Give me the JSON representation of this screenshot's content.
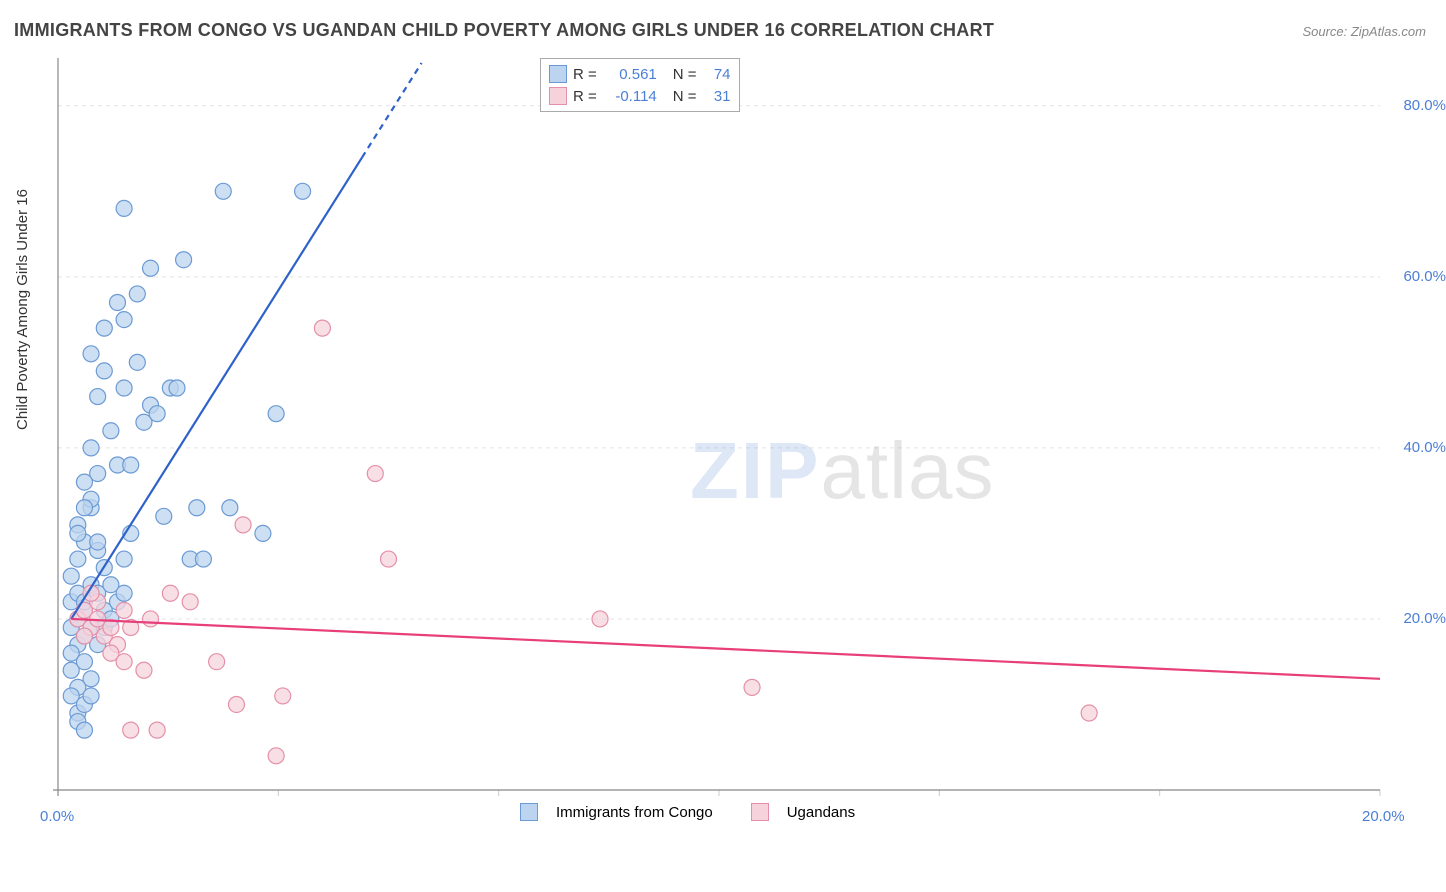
{
  "title": "IMMIGRANTS FROM CONGO VS UGANDAN CHILD POVERTY AMONG GIRLS UNDER 16 CORRELATION CHART",
  "source_label": "Source: ",
  "source_value": "ZipAtlas.com",
  "ylabel": "Child Poverty Among Girls Under 16",
  "watermark_bold": "ZIP",
  "watermark_light": "atlas",
  "chart": {
    "type": "scatter-correlation",
    "background_color": "#ffffff",
    "grid_color": "#e3e3e3",
    "axis_color": "#888888",
    "tick_color": "#cccccc",
    "xlim": [
      0,
      20
    ],
    "ylim": [
      0,
      85
    ],
    "xticks": [
      0,
      20
    ],
    "xtick_labels": [
      "0.0%",
      "20.0%"
    ],
    "yticks": [
      20,
      40,
      60,
      80
    ],
    "ytick_labels": [
      "20.0%",
      "40.0%",
      "60.0%",
      "80.0%"
    ],
    "marker_radius": 8,
    "marker_stroke_width": 1.2,
    "trend_width": 2.2,
    "series": [
      {
        "name": "Immigrants from Congo",
        "fill": "#bcd4ef",
        "stroke": "#6b9ad4",
        "trend_color": "#2e62c9",
        "R": 0.561,
        "N": 74,
        "trend": {
          "x1": 0.2,
          "y1": 20.0,
          "x2": 5.5,
          "y2": 85.0,
          "dash_after_x": 4.6
        },
        "points": [
          [
            0.2,
            22
          ],
          [
            0.3,
            23
          ],
          [
            0.2,
            25
          ],
          [
            0.4,
            21
          ],
          [
            0.3,
            27
          ],
          [
            0.5,
            24
          ],
          [
            0.2,
            19
          ],
          [
            0.4,
            29
          ],
          [
            0.3,
            31
          ],
          [
            0.5,
            33
          ],
          [
            0.3,
            17
          ],
          [
            0.6,
            23
          ],
          [
            0.4,
            18
          ],
          [
            0.2,
            16
          ],
          [
            0.7,
            26
          ],
          [
            0.3,
            20
          ],
          [
            0.4,
            22
          ],
          [
            0.5,
            19
          ],
          [
            0.2,
            14
          ],
          [
            0.6,
            28
          ],
          [
            0.3,
            12
          ],
          [
            0.4,
            15
          ],
          [
            0.7,
            21
          ],
          [
            0.2,
            11
          ],
          [
            0.8,
            24
          ],
          [
            0.5,
            13
          ],
          [
            0.3,
            9
          ],
          [
            0.6,
            17
          ],
          [
            0.4,
            10
          ],
          [
            0.9,
            22
          ],
          [
            0.3,
            8
          ],
          [
            0.7,
            19
          ],
          [
            0.5,
            11
          ],
          [
            1.0,
            23
          ],
          [
            0.4,
            7
          ],
          [
            0.8,
            20
          ],
          [
            0.6,
            29
          ],
          [
            1.1,
            30
          ],
          [
            0.5,
            34
          ],
          [
            0.9,
            38
          ],
          [
            0.7,
            49
          ],
          [
            1.0,
            47
          ],
          [
            1.3,
            43
          ],
          [
            1.6,
            32
          ],
          [
            0.4,
            33
          ],
          [
            0.6,
            37
          ],
          [
            0.8,
            42
          ],
          [
            1.2,
            50
          ],
          [
            0.5,
            51
          ],
          [
            1.0,
            55
          ],
          [
            1.4,
            45
          ],
          [
            1.7,
            47
          ],
          [
            2.0,
            27
          ],
          [
            2.2,
            27
          ],
          [
            2.1,
            33
          ],
          [
            2.6,
            33
          ],
          [
            1.9,
            62
          ],
          [
            3.1,
            30
          ],
          [
            3.3,
            44
          ],
          [
            1.1,
            38
          ],
          [
            2.5,
            70
          ],
          [
            3.7,
            70
          ],
          [
            1.2,
            58
          ],
          [
            1.4,
            61
          ],
          [
            1.0,
            68
          ],
          [
            0.9,
            57
          ],
          [
            0.7,
            54
          ],
          [
            1.5,
            44
          ],
          [
            1.8,
            47
          ],
          [
            0.6,
            46
          ],
          [
            0.5,
            40
          ],
          [
            0.4,
            36
          ],
          [
            0.3,
            30
          ],
          [
            1.0,
            27
          ]
        ]
      },
      {
        "name": "Ugandans",
        "fill": "#f6d3dc",
        "stroke": "#e490a8",
        "trend_color": "#e83e7a",
        "R": -0.114,
        "N": 31,
        "trend": {
          "x1": 0.2,
          "y1": 20.0,
          "x2": 20.0,
          "y2": 13.0
        },
        "points": [
          [
            0.3,
            20
          ],
          [
            0.5,
            19
          ],
          [
            0.4,
            21
          ],
          [
            0.7,
            18
          ],
          [
            0.6,
            22
          ],
          [
            0.9,
            17
          ],
          [
            0.5,
            23
          ],
          [
            1.1,
            19
          ],
          [
            0.8,
            16
          ],
          [
            1.4,
            20
          ],
          [
            1.0,
            15
          ],
          [
            1.7,
            23
          ],
          [
            1.3,
            14
          ],
          [
            2.0,
            22
          ],
          [
            1.1,
            7
          ],
          [
            1.5,
            7
          ],
          [
            2.4,
            15
          ],
          [
            2.7,
            10
          ],
          [
            3.4,
            11
          ],
          [
            2.8,
            31
          ],
          [
            3.3,
            4
          ],
          [
            4.8,
            37
          ],
          [
            5.0,
            27
          ],
          [
            4.0,
            54
          ],
          [
            8.2,
            20
          ],
          [
            10.5,
            12
          ],
          [
            15.6,
            9
          ],
          [
            0.4,
            18
          ],
          [
            0.6,
            20
          ],
          [
            0.8,
            19
          ],
          [
            1.0,
            21
          ]
        ]
      }
    ]
  },
  "legend_box": {
    "R_label": "R =",
    "N_label": "N ="
  },
  "bottom_legend": {
    "items": [
      "Immigrants from Congo",
      "Ugandans"
    ]
  }
}
